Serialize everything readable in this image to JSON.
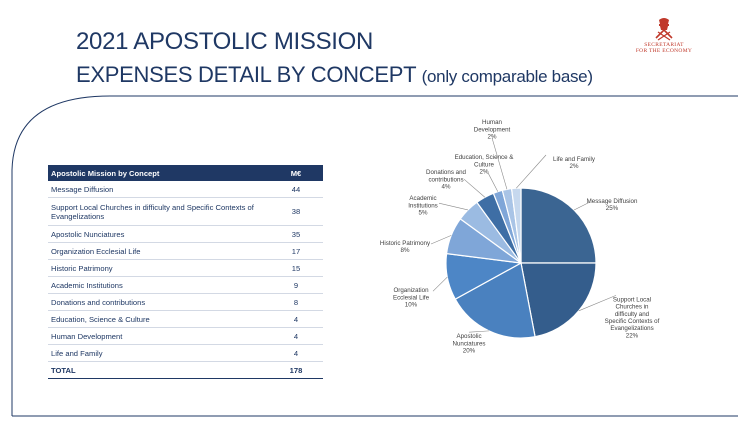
{
  "header": {
    "title": "2021 APOSTOLIC MISSION",
    "subtitle": "EXPENSES DETAIL BY CONCEPT",
    "subtitle_note": "(only comparable base)"
  },
  "logo": {
    "line1": "SECRETARIAT",
    "line2": "FOR THE ECONOMY"
  },
  "table": {
    "header_concept": "Apostolic Mission by Concept",
    "header_value": "M€",
    "rows": [
      {
        "concept": "Message Diffusion",
        "value": "44"
      },
      {
        "concept": "Support Local Churches in difficulty and Specific Contexts of Evangelizations",
        "value": "38"
      },
      {
        "concept": "Apostolic  Nunciatures",
        "value": "35"
      },
      {
        "concept": "Organization Ecclesial Life",
        "value": "17"
      },
      {
        "concept": "Historic Patrimony",
        "value": "15"
      },
      {
        "concept": "Academic Institutions",
        "value": "9"
      },
      {
        "concept": "Donations and contributions",
        "value": "8"
      },
      {
        "concept": "Education, Science & Culture",
        "value": "4"
      },
      {
        "concept": "Human Development",
        "value": "4"
      },
      {
        "concept": "Life and Family",
        "value": "4"
      }
    ],
    "total_label": "TOTAL",
    "total_value": "178"
  },
  "chart_data": {
    "type": "pie",
    "title": "",
    "slices": [
      {
        "label": [
          "Message Diffusion"
        ],
        "pct_label": "25%",
        "value": 25,
        "color": "#3b6592"
      },
      {
        "label": [
          "Support Local",
          "Churches in",
          "difficulty and",
          "Specific Contexts of",
          "Evangelizations"
        ],
        "pct_label": "22%",
        "value": 22,
        "color": "#345d8c"
      },
      {
        "label": [
          "Apostolic",
          "Nunciatures"
        ],
        "pct_label": "20%",
        "value": 20,
        "color": "#4a81bf"
      },
      {
        "label": [
          "Organization",
          "Ecclesial Life"
        ],
        "pct_label": "10%",
        "value": 10,
        "color": "#4d86c6"
      },
      {
        "label": [
          "Historic Patrimony"
        ],
        "pct_label": "8%",
        "value": 8,
        "color": "#7fa6d8"
      },
      {
        "label": [
          "Academic",
          "Institutions"
        ],
        "pct_label": "5%",
        "value": 5,
        "color": "#9bbbe2"
      },
      {
        "label": [
          "Donations and",
          "contributions"
        ],
        "pct_label": "4%",
        "value": 4,
        "color": "#3e6ea5"
      },
      {
        "label": [
          "Education, Science &",
          "Culture"
        ],
        "pct_label": "2%",
        "value": 2,
        "color": "#7fa6d8"
      },
      {
        "label": [
          "Human",
          "Development"
        ],
        "pct_label": "2%",
        "value": 2,
        "color": "#a9c4e6"
      },
      {
        "label": [
          "Life and Family"
        ],
        "pct_label": "2%",
        "value": 2,
        "color": "#c6d8ee"
      }
    ]
  }
}
